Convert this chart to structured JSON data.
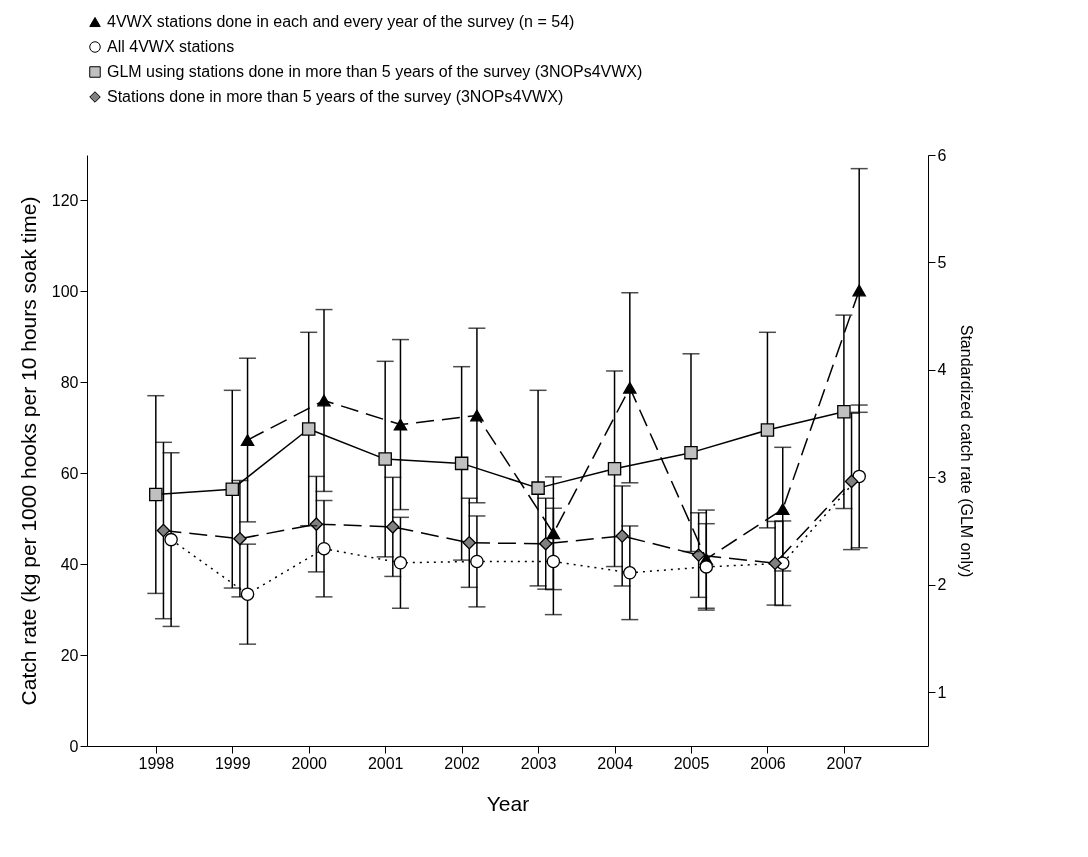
{
  "chart_data": {
    "type": "line",
    "xlabel": "Year",
    "ylabel": "Catch rate (kg per 1000 hooks per 10 hours soak time)",
    "y2label": "Standardized catch rate (GLM only)",
    "xlim": [
      1997.1,
      2008.1
    ],
    "xticks": [
      1998,
      1999,
      2000,
      2001,
      2002,
      2003,
      2004,
      2005,
      2006,
      2007
    ],
    "ylim": [
      0,
      130
    ],
    "yticks": [
      0,
      20,
      40,
      60,
      80,
      100,
      120
    ],
    "y2lim": [
      0.5,
      6
    ],
    "y2ticks": [
      1,
      2,
      3,
      4,
      5,
      6
    ],
    "legend": "top",
    "series": [
      {
        "name": "4VWX stations done in each and every year of the survey (n = 54)",
        "color": "#000000",
        "marker": "triangle",
        "line_style": "dashed",
        "x": [
          1999.2,
          2000.2,
          2001.2,
          2002.2,
          2003.2,
          2004.2,
          2005.2,
          2006.2,
          2007.2
        ],
        "values": [
          67.3,
          76.0,
          70.7,
          72.7,
          46.8,
          78.8,
          41.1,
          52.1,
          100.2
        ],
        "errors": [
          18,
          20,
          18.7,
          19.2,
          12.4,
          20.9,
          10.8,
          13.6,
          26.8
        ]
      },
      {
        "name": "All 4VWX stations",
        "color": "#ffffff",
        "marker": "circle",
        "line_style": "dotted",
        "x": [
          1998.2,
          1999.2,
          2000.2,
          2001.2,
          2002.2,
          2003.2,
          2004.2,
          2005.2,
          2006.2,
          2007.2
        ],
        "values": [
          45.4,
          33.4,
          43.4,
          40.3,
          40.6,
          40.6,
          38.1,
          39.4,
          40.2,
          59.3
        ],
        "errors": [
          19.1,
          11,
          10.6,
          10,
          10,
          11.7,
          10.3,
          9.5,
          9.3,
          15.7
        ]
      },
      {
        "name": "GLM using stations done in more than 5 years of the survey (3NOPs4VWX)",
        "color": "#c0c0c0",
        "marker": "square",
        "line_style": "solid",
        "axis": "y2",
        "x": [
          1998,
          1999,
          2000,
          2001,
          2002,
          2003,
          2004,
          2005,
          2006,
          2007
        ],
        "values": [
          2.84,
          2.89,
          3.45,
          3.17,
          3.13,
          2.9,
          3.08,
          3.23,
          3.44,
          3.61
        ],
        "errors": [
          0.92,
          0.92,
          0.9,
          0.91,
          0.9,
          0.91,
          0.91,
          0.92,
          0.91,
          0.9
        ]
      },
      {
        "name": "Stations done in more than 5 years of the survey (3NOPs4VWX)",
        "color": "#808080",
        "marker": "diamond",
        "line_style": "dashed",
        "x": [
          1998.1,
          1999.1,
          2000.1,
          2001.1,
          2002.1,
          2003.1,
          2004.1,
          2005.1,
          2006.1,
          2007.1
        ],
        "values": [
          47.4,
          45.6,
          48.8,
          48.2,
          44.7,
          44.5,
          46.2,
          42.0,
          40.2,
          58.2
        ],
        "errors": [
          19.4,
          12.8,
          10.5,
          10.9,
          9.8,
          10,
          11,
          9.3,
          9.2,
          15
        ]
      }
    ]
  }
}
